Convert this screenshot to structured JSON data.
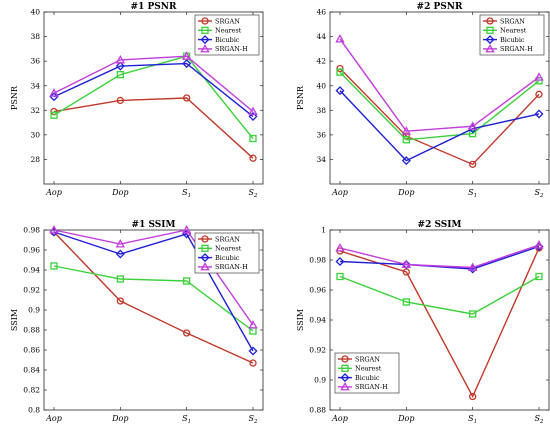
{
  "figure": {
    "charts": 4
  },
  "chart_data": [
    {
      "type": "line",
      "title": "#1 PSNR",
      "xlabel": "",
      "ylabel": "PSNR",
      "categories": [
        "Aop",
        "Dop",
        "S1",
        "S2"
      ],
      "ylim": [
        26,
        40
      ],
      "yticks": [
        28,
        30,
        32,
        34,
        36,
        38,
        40
      ],
      "legend_position": "top-right",
      "grid": false,
      "series": [
        {
          "name": "SRGAN",
          "color": "#c0392b",
          "marker": "circle",
          "values": [
            31.9,
            32.8,
            33.0,
            28.1
          ]
        },
        {
          "name": "Nearest",
          "color": "#3ad13a",
          "marker": "square",
          "values": [
            31.6,
            34.9,
            36.4,
            29.7
          ]
        },
        {
          "name": "Bicubic",
          "color": "#1f1fd6",
          "marker": "diamond",
          "values": [
            33.1,
            35.6,
            35.8,
            31.5
          ]
        },
        {
          "name": "SRGAN-H",
          "color": "#c23bdc",
          "marker": "triangle",
          "values": [
            33.4,
            36.1,
            36.4,
            31.9
          ]
        }
      ]
    },
    {
      "type": "line",
      "title": "#2 PSNR",
      "xlabel": "",
      "ylabel": "PSNR",
      "categories": [
        "Aop",
        "Dop",
        "S1",
        "S2"
      ],
      "ylim": [
        32,
        46
      ],
      "yticks": [
        34,
        36,
        38,
        40,
        42,
        44,
        46
      ],
      "legend_position": "top-right",
      "grid": false,
      "series": [
        {
          "name": "SRGAN",
          "color": "#c0392b",
          "marker": "circle",
          "values": [
            41.4,
            35.9,
            33.6,
            39.3
          ]
        },
        {
          "name": "Nearest",
          "color": "#3ad13a",
          "marker": "square",
          "values": [
            41.1,
            35.6,
            36.1,
            40.4
          ]
        },
        {
          "name": "Bicubic",
          "color": "#1f1fd6",
          "marker": "diamond",
          "values": [
            39.6,
            33.9,
            36.5,
            37.7
          ]
        },
        {
          "name": "SRGAN-H",
          "color": "#c23bdc",
          "marker": "triangle",
          "values": [
            43.8,
            36.3,
            36.7,
            40.7
          ]
        }
      ]
    },
    {
      "type": "line",
      "title": "#1 SSIM",
      "xlabel": "",
      "ylabel": "SSIM",
      "categories": [
        "Aop",
        "Dop",
        "S1",
        "S2"
      ],
      "ylim": [
        0.8,
        0.98
      ],
      "yticks": [
        0.8,
        0.82,
        0.84,
        0.86,
        0.88,
        0.9,
        0.92,
        0.94,
        0.96,
        0.98
      ],
      "legend_position": "top-right",
      "grid": false,
      "series": [
        {
          "name": "SRGAN",
          "color": "#c0392b",
          "marker": "circle",
          "values": [
            0.978,
            0.909,
            0.877,
            0.847
          ]
        },
        {
          "name": "Nearest",
          "color": "#3ad13a",
          "marker": "square",
          "values": [
            0.944,
            0.931,
            0.929,
            0.879
          ]
        },
        {
          "name": "Bicubic",
          "color": "#1f1fd6",
          "marker": "diamond",
          "values": [
            0.978,
            0.956,
            0.976,
            0.859
          ]
        },
        {
          "name": "SRGAN-H",
          "color": "#c23bdc",
          "marker": "triangle",
          "values": [
            0.98,
            0.966,
            0.98,
            0.885
          ]
        }
      ]
    },
    {
      "type": "line",
      "title": "#2 SSIM",
      "xlabel": "",
      "ylabel": "SSIM",
      "categories": [
        "Aop",
        "Dop",
        "S1",
        "S2"
      ],
      "ylim": [
        0.88,
        1.0
      ],
      "yticks": [
        0.88,
        0.9,
        0.92,
        0.94,
        0.96,
        0.98,
        1
      ],
      "legend_position": "bottom-left",
      "grid": false,
      "series": [
        {
          "name": "SRGAN",
          "color": "#c0392b",
          "marker": "circle",
          "values": [
            0.986,
            0.972,
            0.889,
            0.988
          ]
        },
        {
          "name": "Nearest",
          "color": "#3ad13a",
          "marker": "square",
          "values": [
            0.969,
            0.952,
            0.944,
            0.969
          ]
        },
        {
          "name": "Bicubic",
          "color": "#1f1fd6",
          "marker": "diamond",
          "values": [
            0.979,
            0.977,
            0.974,
            0.989
          ]
        },
        {
          "name": "SRGAN-H",
          "color": "#c23bdc",
          "marker": "triangle",
          "values": [
            0.988,
            0.977,
            0.975,
            0.99
          ]
        }
      ]
    }
  ]
}
